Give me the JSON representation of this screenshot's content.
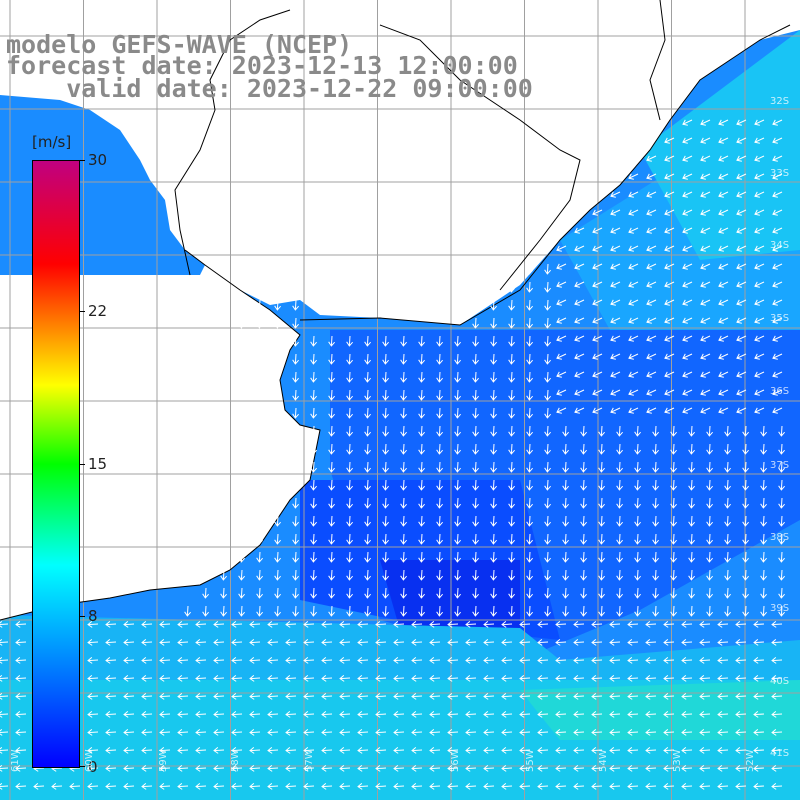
{
  "title": {
    "model": "modelo GEFS-WAVE (NCEP)",
    "forecast": "forecast date: 2023-12-13 12:00:00",
    "valid": "    valid date: 2023-12-22 09:00:00"
  },
  "colorbar": {
    "unit": "[m/s]",
    "ticks": [
      "30",
      "22",
      "15",
      "8",
      "0"
    ]
  },
  "lat_labels": [
    "32S",
    "33S",
    "34S",
    "35S",
    "36S",
    "37S",
    "38S",
    "39S",
    "40S",
    "41S"
  ],
  "lon_labels": [
    "61W",
    "60W",
    "59W",
    "58W",
    "57W",
    "56W",
    "55W",
    "54W",
    "53W",
    "52W"
  ],
  "colors": {
    "land": "#ffffff",
    "grid": "#a0a0a0",
    "coast": "#000000",
    "arrow": "#ffffff",
    "title": "#8a8a8a"
  }
}
